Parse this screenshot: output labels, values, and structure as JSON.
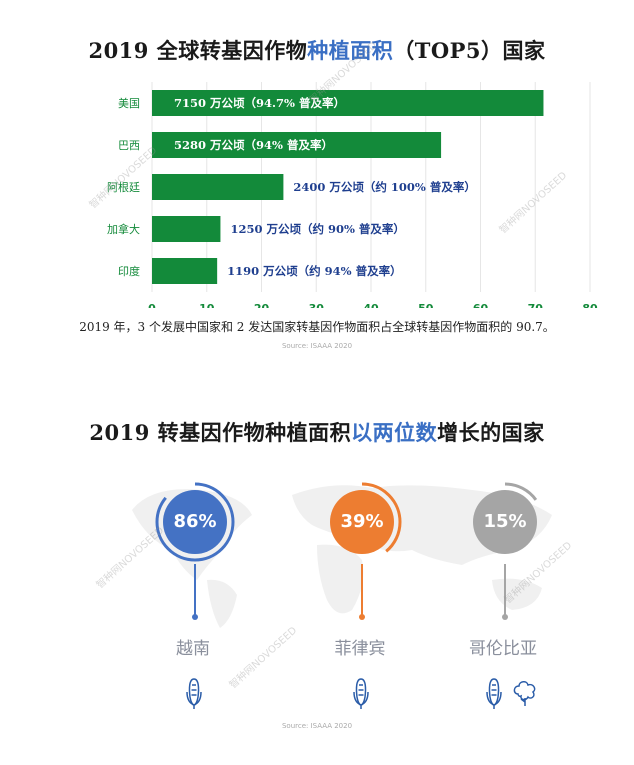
{
  "title1": {
    "pre": "2019 全球转基因作物",
    "highlight": "种植面积",
    "post": "（TOP5）国家"
  },
  "chart_data": {
    "type": "bar",
    "orientation": "horizontal",
    "title": "2019 全球转基因作物种植面积（TOP5）国家",
    "categories": [
      "美国",
      "巴西",
      "阿根廷",
      "加拿大",
      "印度"
    ],
    "values": [
      71.5,
      52.8,
      24,
      12.5,
      11.9
    ],
    "data_labels": [
      "7150 万公顷（94.7% 普及率）",
      "5280 万公顷（94% 普及率）",
      "2400 万公顷（约 100% 普及率）",
      "1250 万公顷（约 90% 普及率）",
      "1190 万公顷（约 94% 普及率）"
    ],
    "xlim": [
      0,
      80
    ],
    "xticks": [
      "0",
      "10",
      "20",
      "30",
      "40",
      "50",
      "60",
      "70",
      "80"
    ],
    "grid": true,
    "bar_color": "#138a3a",
    "tick_color": "#138a3a",
    "label_color": "#1f3f8f"
  },
  "note": "2019 年，3 个发展中国家和 2 发达国家转基因作物面积占全球转基因作物面积的 90.7。",
  "source1": "Source:   ISAAA 2020",
  "title2": {
    "pre": "2019 转基因作物种植面积",
    "highlight": "以两位数",
    "post": "增长的国家"
  },
  "growth": [
    {
      "pct": "86%",
      "name": "越南",
      "color": "#4472c4",
      "fraction": 0.86,
      "crops": [
        "corn-icon"
      ]
    },
    {
      "pct": "39%",
      "name": "菲律宾",
      "color": "#ed7d31",
      "fraction": 0.39,
      "crops": [
        "corn-icon"
      ]
    },
    {
      "pct": "15%",
      "name": "哥伦比亚",
      "color": "#a5a5a5",
      "fraction": 0.15,
      "crops": [
        "corn-icon",
        "cotton-icon"
      ]
    }
  ],
  "source2": "Source:   ISAAA 2020",
  "watermark": "智种网NOVOSEED"
}
